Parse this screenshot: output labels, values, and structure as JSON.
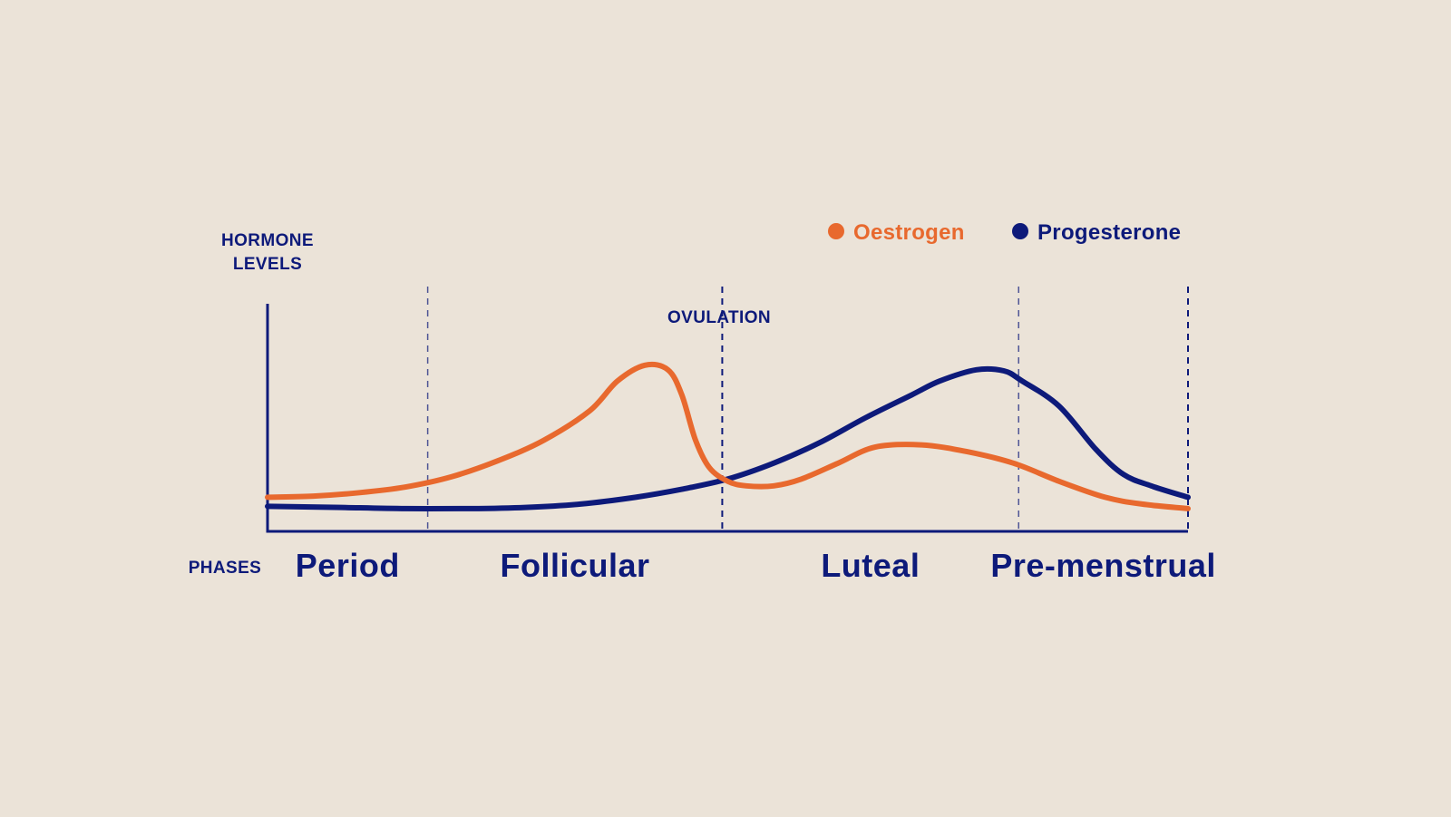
{
  "colors": {
    "background": "#ebe3d8",
    "oestrogen": "#e8692e",
    "progesterone": "#0d1a7a",
    "axis": "#0d1a7a"
  },
  "chart_data": {
    "type": "line",
    "ylabel_line1": "HORMONE",
    "ylabel_line2": "LEVELS",
    "xlabel": "PHASES",
    "annotation": "OVULATION",
    "x_range": [
      0,
      100
    ],
    "y_range": [
      0,
      100
    ],
    "boundaries": [
      17.4,
      49.4,
      81.6
    ],
    "ovulation_x": 49.4,
    "phases": [
      {
        "name": "Period",
        "center": 8.7
      },
      {
        "name": "Follicular",
        "center": 33.4
      },
      {
        "name": "Luteal",
        "center": 65.5
      },
      {
        "name": "Pre-menstrual",
        "center": 90.8
      }
    ],
    "legend": [
      {
        "label": "Oestrogen",
        "color": "#e8692e"
      },
      {
        "label": "Progesterone",
        "color": "#0d1a7a"
      }
    ],
    "series": [
      {
        "name": "Oestrogen",
        "color": "#e8692e",
        "points": [
          [
            0,
            15
          ],
          [
            5,
            15.5
          ],
          [
            10,
            17
          ],
          [
            15,
            19.5
          ],
          [
            20,
            24
          ],
          [
            25,
            31
          ],
          [
            30,
            40
          ],
          [
            35,
            53
          ],
          [
            38,
            66
          ],
          [
            41,
            73
          ],
          [
            43.5,
            71
          ],
          [
            45,
            60
          ],
          [
            46.5,
            40
          ],
          [
            48,
            28
          ],
          [
            50,
            22
          ],
          [
            52,
            20
          ],
          [
            55,
            20
          ],
          [
            58,
            23
          ],
          [
            62,
            30
          ],
          [
            66,
            37
          ],
          [
            71,
            38
          ],
          [
            76,
            35
          ],
          [
            81,
            30
          ],
          [
            86,
            22
          ],
          [
            91,
            15
          ],
          [
            95,
            12
          ],
          [
            100,
            10
          ]
        ]
      },
      {
        "name": "Progesterone",
        "color": "#0d1a7a",
        "points": [
          [
            0,
            11
          ],
          [
            8,
            10.5
          ],
          [
            15,
            10
          ],
          [
            22,
            10
          ],
          [
            28,
            10.5
          ],
          [
            34,
            12
          ],
          [
            40,
            15
          ],
          [
            45,
            18.5
          ],
          [
            50,
            23
          ],
          [
            55,
            30
          ],
          [
            60,
            39
          ],
          [
            65,
            50
          ],
          [
            70,
            60
          ],
          [
            73,
            66
          ],
          [
            77,
            71
          ],
          [
            80,
            70.5
          ],
          [
            82,
            66
          ],
          [
            86,
            55
          ],
          [
            90,
            36
          ],
          [
            93,
            25
          ],
          [
            96,
            20
          ],
          [
            100,
            15
          ]
        ]
      }
    ]
  }
}
